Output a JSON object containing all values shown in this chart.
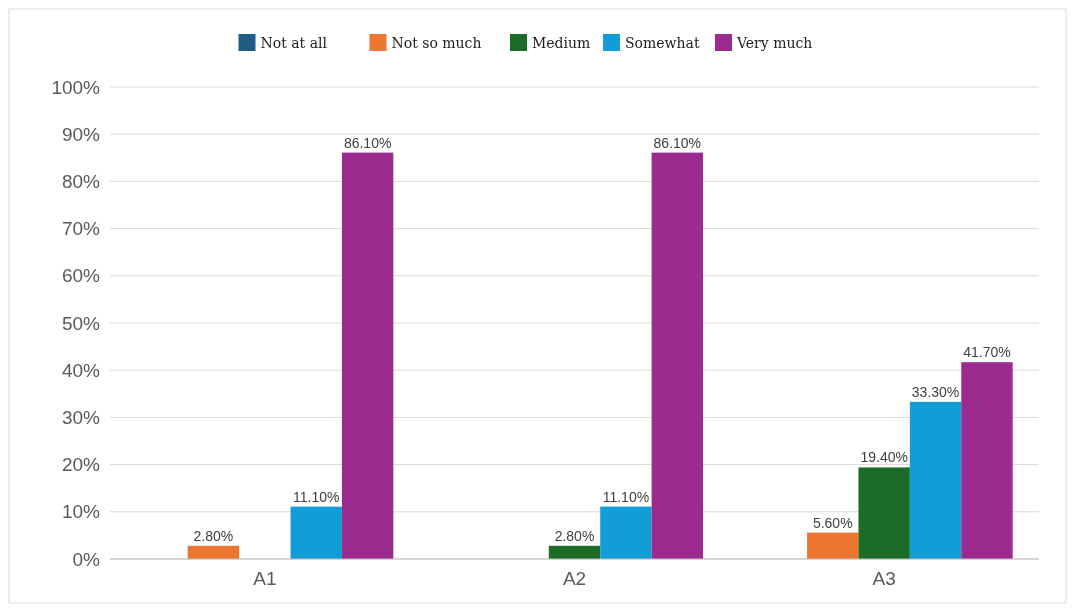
{
  "chart_data": {
    "type": "bar",
    "categories": [
      "A1",
      "A2",
      "A3"
    ],
    "series": [
      {
        "name": "Not at all",
        "color": "#1f5c84",
        "values": [
          0,
          0,
          0
        ],
        "value_labels": [
          null,
          null,
          null
        ]
      },
      {
        "name": "Not so much",
        "color": "#ec7532",
        "values": [
          2.8,
          0,
          5.6
        ],
        "value_labels": [
          "2.80%",
          null,
          "5.60%"
        ]
      },
      {
        "name": "Medium",
        "color": "#1c6b26",
        "values": [
          0,
          2.8,
          19.4
        ],
        "value_labels": [
          null,
          "2.80%",
          "19.40%"
        ]
      },
      {
        "name": "Somewhat",
        "color": "#139dd6",
        "values": [
          11.1,
          11.1,
          33.3
        ],
        "value_labels": [
          "11.10%",
          "11.10%",
          "33.30%"
        ]
      },
      {
        "name": "Very much",
        "color": "#9c2b90",
        "values": [
          86.1,
          86.1,
          41.7
        ],
        "value_labels": [
          "86.10%",
          "86.10%",
          "41.70%"
        ]
      }
    ],
    "ylim": [
      0,
      100
    ],
    "yticks": [
      {
        "value": 0,
        "label": "0%"
      },
      {
        "value": 10,
        "label": "10%"
      },
      {
        "value": 20,
        "label": "20%"
      },
      {
        "value": 30,
        "label": "30%"
      },
      {
        "value": 40,
        "label": "40%"
      },
      {
        "value": 50,
        "label": "50%"
      },
      {
        "value": 60,
        "label": "60%"
      },
      {
        "value": 70,
        "label": "70%"
      },
      {
        "value": 80,
        "label": "80%"
      },
      {
        "value": 90,
        "label": "90%"
      },
      {
        "value": 100,
        "label": "100%"
      }
    ],
    "grid": "y",
    "legend": "top"
  }
}
